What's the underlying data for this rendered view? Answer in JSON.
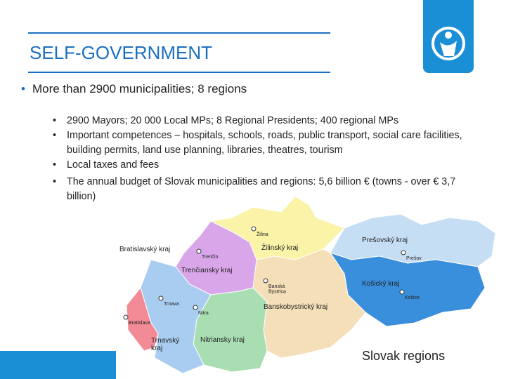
{
  "header": {
    "title": "SELF-GOVERNMENT"
  },
  "bullets": [
    {
      "text": "More than 2900 municipalities; 8 regions",
      "sub_bullets": [
        "2900 Mayors; 20 000 Local MPs; 8 Regional Presidents; 400 regional MPs",
        "Important competences – hospitals, schools, roads, public transport, social care facilities, building permits, land use planning, libraries, theatres, tourism",
        "Local taxes and fees",
        "The annual budget of Slovak municipalities and regions: 5,6 billion € (towns - over € 3,7 billion)"
      ]
    }
  ],
  "map": {
    "caption": "Slovak regions",
    "regions": [
      {
        "lines": [
          "Bratislavský kraj"
        ]
      },
      {
        "lines": [
          "Trenčiansky kraj"
        ]
      },
      {
        "lines": [
          "Žilinský kraj"
        ]
      },
      {
        "lines": [
          "Prešovský kraj"
        ]
      },
      {
        "lines": [
          "Košický kraj"
        ]
      },
      {
        "lines": [
          "Banskobystrický kraj"
        ]
      },
      {
        "lines": [
          "Trnavský",
          "kraj"
        ]
      },
      {
        "lines": [
          "Nitriansky kraj"
        ]
      }
    ],
    "cities": [
      {
        "lines": [
          "Trenčín"
        ]
      },
      {
        "lines": [
          "Žilina"
        ]
      },
      {
        "lines": [
          "Prešov"
        ]
      },
      {
        "lines": [
          "Banská",
          "Bystrica"
        ]
      },
      {
        "lines": [
          "Košice"
        ]
      },
      {
        "lines": [
          "Trnava"
        ]
      },
      {
        "lines": [
          "Nitra"
        ]
      },
      {
        "lines": [
          "Bratislava"
        ]
      }
    ]
  }
}
